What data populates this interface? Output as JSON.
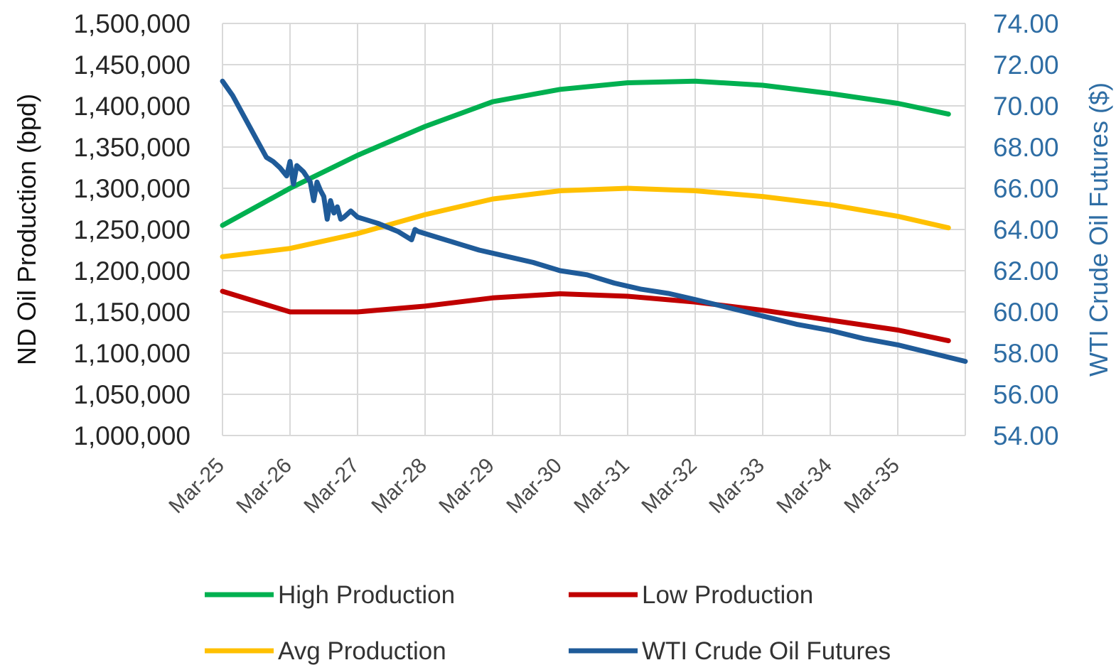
{
  "chart_data": {
    "type": "line",
    "title": "",
    "ylabel": "ND Oil Production (bpd)",
    "y2label": "WTI Crude Oil Futures ($)",
    "ylim": [
      1000000,
      1500000
    ],
    "y2lim": [
      54,
      74
    ],
    "grid": true,
    "legend_position": "bottom",
    "categories": [
      "Mar-25",
      "Mar-26",
      "Mar-27",
      "Mar-28",
      "Mar-29",
      "Mar-30",
      "Mar-31",
      "Mar-32",
      "Mar-33",
      "Mar-34",
      "Mar-35"
    ],
    "yticks": [
      "1,000,000",
      "1,050,000",
      "1,100,000",
      "1,150,000",
      "1,200,000",
      "1,250,000",
      "1,300,000",
      "1,350,000",
      "1,400,000",
      "1,450,000",
      "1,500,000"
    ],
    "y2ticks": [
      "54.00",
      "56.00",
      "58.00",
      "60.00",
      "62.00",
      "64.00",
      "66.00",
      "68.00",
      "70.00",
      "72.00",
      "74.00"
    ],
    "series": [
      {
        "name": "High Production",
        "axis": "left",
        "color": "#00b050",
        "x": [
          0,
          1,
          2,
          3,
          4,
          5,
          6,
          7,
          8,
          9,
          10,
          10.75
        ],
        "values": [
          1255000,
          1300000,
          1340000,
          1375000,
          1405000,
          1420000,
          1428000,
          1430000,
          1425000,
          1415000,
          1403000,
          1390000
        ]
      },
      {
        "name": "Low Production",
        "axis": "left",
        "color": "#c00000",
        "x": [
          0,
          1,
          2,
          3,
          4,
          5,
          6,
          7,
          8,
          9,
          10,
          10.75
        ],
        "values": [
          1175000,
          1150000,
          1150000,
          1157000,
          1167000,
          1172000,
          1169000,
          1162000,
          1152000,
          1140000,
          1128000,
          1115000
        ]
      },
      {
        "name": "Avg Production",
        "axis": "left",
        "color": "#ffc000",
        "x": [
          0,
          1,
          2,
          3,
          4,
          5,
          6,
          7,
          8,
          9,
          10,
          10.75
        ],
        "values": [
          1217000,
          1227000,
          1245000,
          1268000,
          1287000,
          1297000,
          1300000,
          1297000,
          1290000,
          1280000,
          1266000,
          1252000
        ]
      },
      {
        "name": "WTI Crude Oil Futures",
        "axis": "right",
        "color": "#1f5b99",
        "x": [
          0,
          0.15,
          0.35,
          0.5,
          0.65,
          0.75,
          0.85,
          0.95,
          1.0,
          1.05,
          1.1,
          1.2,
          1.3,
          1.35,
          1.4,
          1.45,
          1.5,
          1.55,
          1.6,
          1.65,
          1.7,
          1.75,
          1.8,
          1.9,
          2.0,
          2.3,
          2.6,
          2.8,
          2.85,
          2.9,
          3.2,
          3.5,
          3.8,
          4.2,
          4.6,
          5.0,
          5.4,
          5.8,
          6.2,
          6.6,
          7.0,
          7.5,
          8.0,
          8.5,
          9.0,
          9.5,
          10.0,
          10.5,
          11.0
        ],
        "values": [
          71.2,
          70.5,
          69.3,
          68.4,
          67.5,
          67.3,
          67.0,
          66.6,
          67.3,
          66.2,
          67.1,
          66.8,
          66.3,
          65.4,
          66.3,
          65.9,
          65.6,
          64.5,
          65.4,
          64.8,
          65.1,
          64.5,
          64.6,
          64.9,
          64.6,
          64.3,
          63.9,
          63.5,
          64.0,
          63.9,
          63.6,
          63.3,
          63.0,
          62.7,
          62.4,
          62.0,
          61.8,
          61.4,
          61.1,
          60.9,
          60.6,
          60.2,
          59.8,
          59.4,
          59.1,
          58.7,
          58.4,
          58.0,
          57.6
        ]
      }
    ]
  }
}
